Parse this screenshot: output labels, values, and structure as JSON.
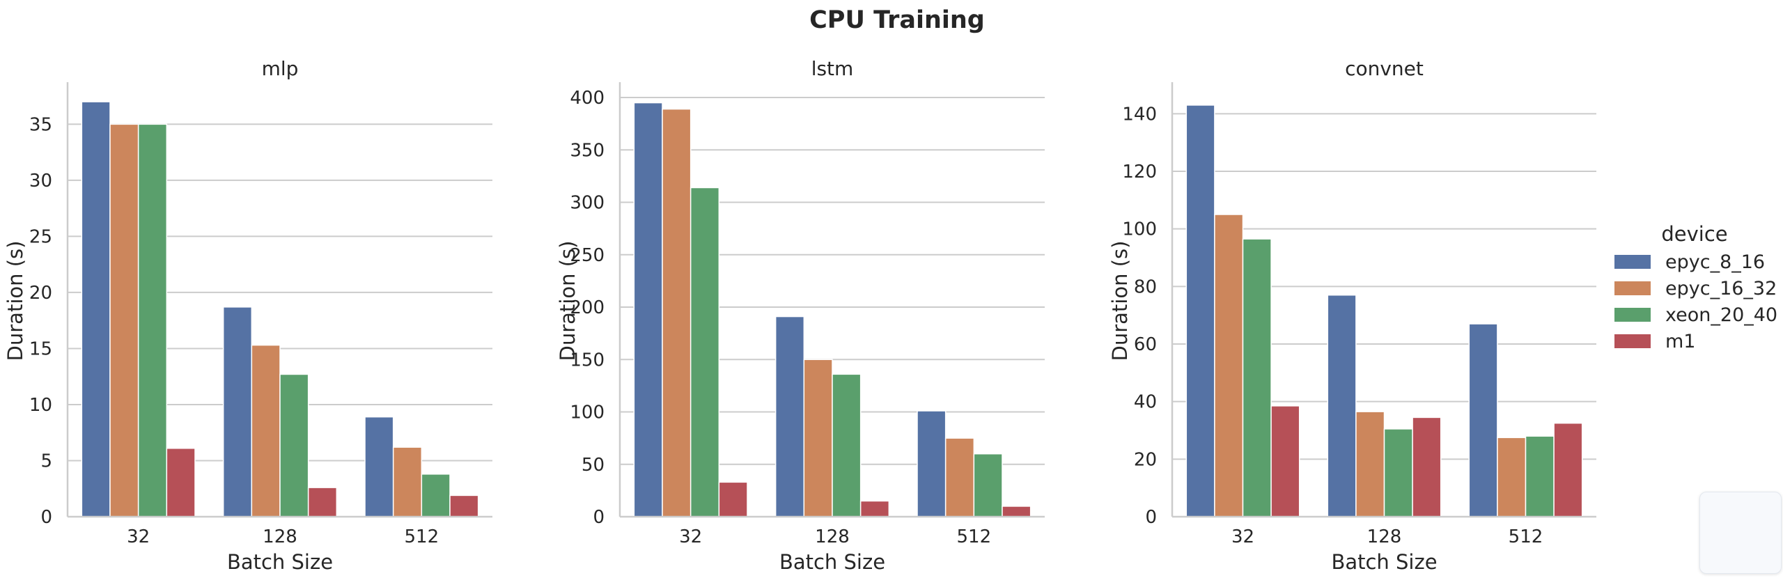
{
  "chart_data": {
    "type": "bar",
    "title": "CPU Training",
    "legend": {
      "title": "device",
      "placement": "right",
      "entries": [
        "epyc_8_16",
        "epyc_16_32",
        "xeon_20_40",
        "m1"
      ]
    },
    "colors": [
      "#5572a4",
      "#cc865c",
      "#5a9f6c",
      "#b65057"
    ],
    "grid": true,
    "panels": [
      {
        "title": "mlp",
        "xlabel": "Batch Size",
        "ylabel": "Duration (s)",
        "categories": [
          "32",
          "128",
          "512"
        ],
        "ylim": [
          0,
          38.5
        ],
        "yticks": [
          0,
          5,
          10,
          15,
          20,
          25,
          30,
          35
        ],
        "series": [
          {
            "name": "epyc_8_16",
            "values": [
              37.0,
              18.7,
              8.9
            ]
          },
          {
            "name": "epyc_16_32",
            "values": [
              35.0,
              15.3,
              6.2
            ]
          },
          {
            "name": "xeon_20_40",
            "values": [
              35.0,
              12.7,
              3.8
            ]
          },
          {
            "name": "m1",
            "values": [
              6.1,
              2.6,
              1.9
            ]
          }
        ]
      },
      {
        "title": "lstm",
        "xlabel": "Batch Size",
        "ylabel": "Duration (s)",
        "categories": [
          "32",
          "128",
          "512"
        ],
        "ylim": [
          0,
          412
        ],
        "yticks": [
          0,
          50,
          100,
          150,
          200,
          250,
          300,
          350,
          400
        ],
        "series": [
          {
            "name": "epyc_8_16",
            "values": [
              395,
              191,
              101
            ]
          },
          {
            "name": "epyc_16_32",
            "values": [
              389,
              150,
              75
            ]
          },
          {
            "name": "xeon_20_40",
            "values": [
              314,
              136,
              60
            ]
          },
          {
            "name": "m1",
            "values": [
              33,
              15,
              10
            ]
          }
        ]
      },
      {
        "title": "convnet",
        "xlabel": "Batch Size",
        "ylabel": "Duration (s)",
        "categories": [
          "32",
          "128",
          "512"
        ],
        "ylim": [
          0,
          150
        ],
        "yticks": [
          0,
          20,
          40,
          60,
          80,
          100,
          120,
          140
        ],
        "series": [
          {
            "name": "epyc_8_16",
            "values": [
              143,
              77,
              67
            ]
          },
          {
            "name": "epyc_16_32",
            "values": [
              105,
              36.5,
              27.5
            ]
          },
          {
            "name": "xeon_20_40",
            "values": [
              96.5,
              30.5,
              28
            ]
          },
          {
            "name": "m1",
            "values": [
              38.5,
              34.5,
              32.5
            ]
          }
        ]
      }
    ]
  }
}
